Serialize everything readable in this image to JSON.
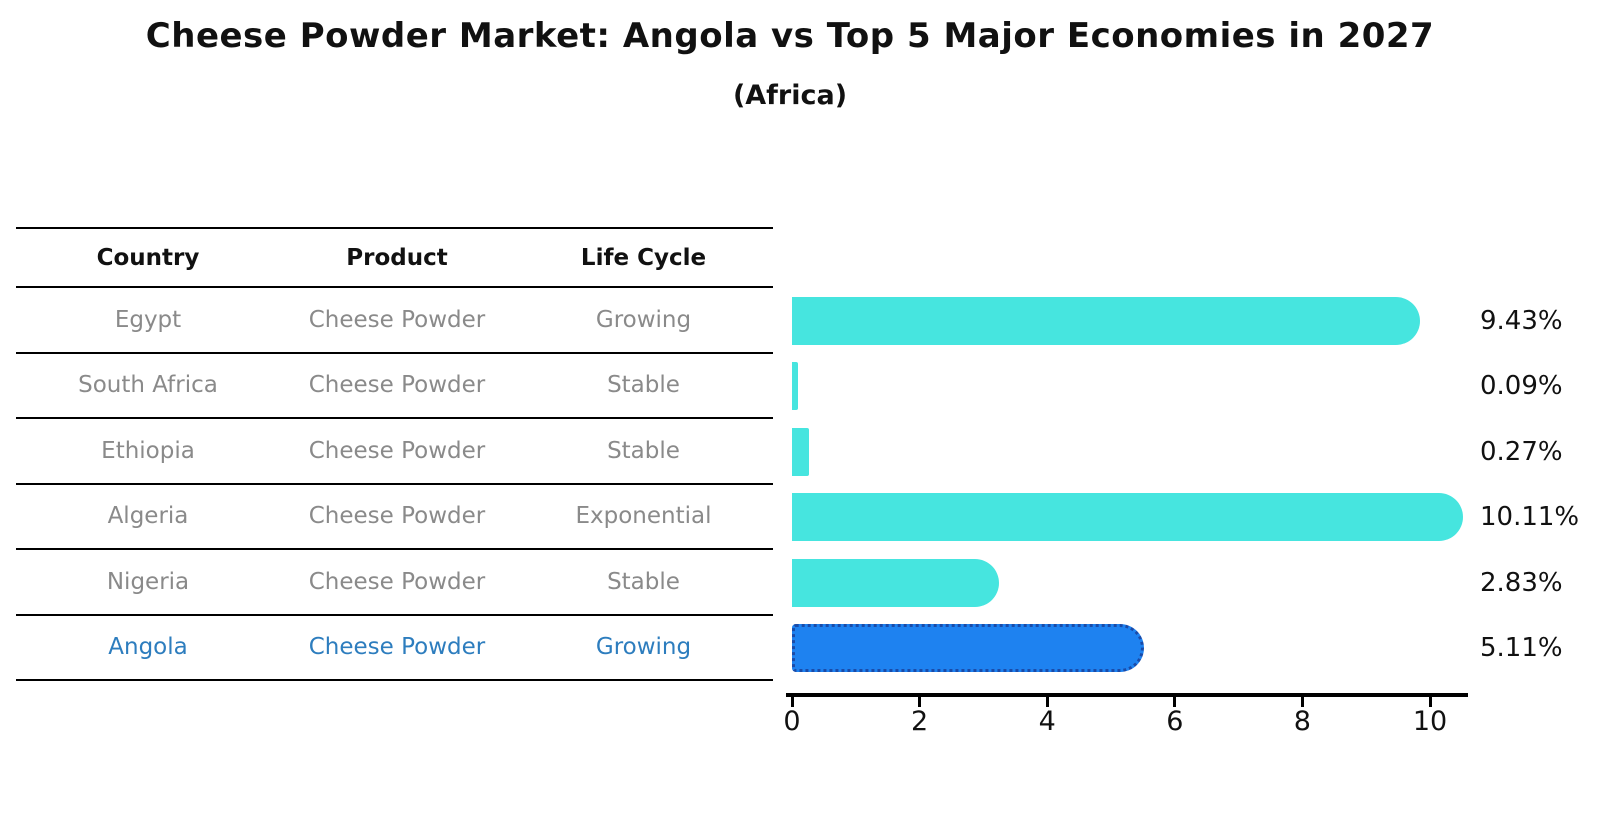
{
  "title": "Cheese Powder Market: Angola vs Top 5 Major Economies in 2027",
  "subtitle": "(Africa)",
  "table": {
    "headers": [
      "Country",
      "Product",
      "Life Cycle"
    ],
    "rows": [
      {
        "country": "Egypt",
        "product": "Cheese Powder",
        "life_cycle": "Growing",
        "highlight": false
      },
      {
        "country": "South Africa",
        "product": "Cheese Powder",
        "life_cycle": "Stable",
        "highlight": false
      },
      {
        "country": "Ethiopia",
        "product": "Cheese Powder",
        "life_cycle": "Stable",
        "highlight": false
      },
      {
        "country": "Algeria",
        "product": "Cheese Powder",
        "life_cycle": "Exponential",
        "highlight": false
      },
      {
        "country": "Nigeria",
        "product": "Cheese Powder",
        "life_cycle": "Stable",
        "highlight": false
      },
      {
        "country": "Angola",
        "product": "Cheese Powder",
        "life_cycle": "Growing",
        "highlight": true
      }
    ]
  },
  "chart_data": {
    "type": "bar",
    "orientation": "horizontal",
    "title": "Cheese Powder Market: Angola vs Top 5 Major Economies in 2027",
    "subtitle": "(Africa)",
    "categories": [
      "Egypt",
      "South Africa",
      "Ethiopia",
      "Algeria",
      "Nigeria",
      "Angola"
    ],
    "values": [
      9.43,
      0.09,
      0.27,
      10.11,
      2.83,
      5.11
    ],
    "value_labels": [
      "9.43%",
      "0.09%",
      "0.27%",
      "10.11%",
      "2.83%",
      "5.11%"
    ],
    "xlabel": "",
    "ylabel": "",
    "x_ticks": [
      0,
      2,
      4,
      6,
      8,
      10
    ],
    "xlim": [
      0,
      10.66
    ],
    "grid": false,
    "legend": false,
    "bar_color": "#46E5DF",
    "highlight_index": 5,
    "highlight_color": "#1E82F0",
    "highlight_border_color": "#1A4BA8"
  },
  "colors": {
    "row_text": "#8A8A8A",
    "highlight_text": "#2D7DBE",
    "text": "#111111",
    "line": "#000000"
  }
}
